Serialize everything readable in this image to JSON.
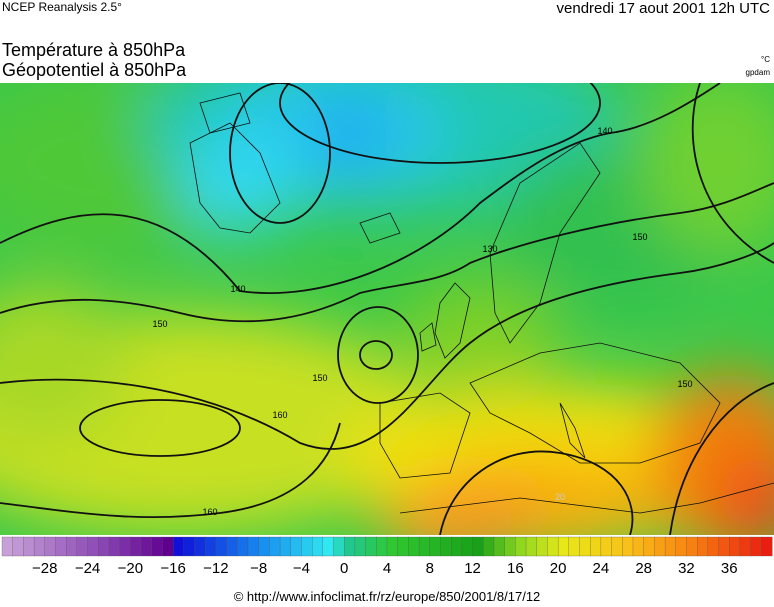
{
  "header": {
    "source": "NCEP Reanalysis 2.5°",
    "date": "vendredi 17 aout 2001 12h UTC",
    "title_temperature": "Température à 850hPa",
    "title_geopotential": "Géopotentiel à 850hPa",
    "unit_temperature": "°C",
    "unit_geopotential": "gpdam"
  },
  "contour_labels": [
    "140",
    "150",
    "150",
    "160",
    "160",
    "150",
    "150",
    "140",
    "130",
    "20"
  ],
  "colorbar": {
    "tick_labels": [
      "−28",
      "−24",
      "−20",
      "−16",
      "−12",
      "−8",
      "−4",
      "0",
      "4",
      "8",
      "12",
      "16",
      "20",
      "24",
      "28",
      "32",
      "36"
    ]
  },
  "footer": "© http://www.infoclimat.fr/rz/europe/850/2001/8/17/12"
}
